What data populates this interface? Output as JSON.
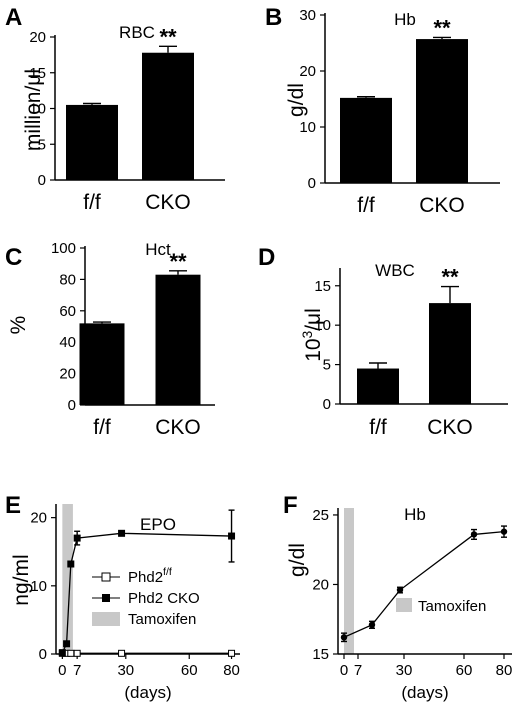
{
  "chart_data": [
    {
      "panel": "A",
      "type": "bar",
      "title": "RBC",
      "ylabel": "million/μl",
      "categories": [
        "f/f",
        "CKO"
      ],
      "values": [
        10.5,
        17.8
      ],
      "errors": [
        0.2,
        0.9
      ],
      "ylim": [
        0,
        20
      ],
      "yticks": [
        0,
        5,
        10,
        15,
        20
      ],
      "significance": "**"
    },
    {
      "panel": "B",
      "type": "bar",
      "title": "Hb",
      "ylabel": "g/dl",
      "categories": [
        "f/f",
        "CKO"
      ],
      "values": [
        15.2,
        25.7
      ],
      "errors": [
        0.2,
        0.3
      ],
      "ylim": [
        0,
        30
      ],
      "yticks": [
        0,
        10,
        20,
        30
      ],
      "significance": "**"
    },
    {
      "panel": "C",
      "type": "bar",
      "title": "Hct",
      "ylabel": "%",
      "categories": [
        "f/f",
        "CKO"
      ],
      "values": [
        52,
        83
      ],
      "errors": [
        0.8,
        2.5
      ],
      "ylim": [
        0,
        100
      ],
      "yticks": [
        0,
        20,
        40,
        60,
        80,
        100
      ],
      "significance": "**"
    },
    {
      "panel": "D",
      "type": "bar",
      "title": "WBC",
      "ylabel_base": "10",
      "ylabel_sup": "3",
      "ylabel_rest": "/μl",
      "categories": [
        "f/f",
        "CKO"
      ],
      "values": [
        4.5,
        12.8
      ],
      "errors": [
        0.7,
        2.1
      ],
      "ylim": [
        0,
        17
      ],
      "yticks": [
        0,
        5,
        10,
        15
      ],
      "significance": "**"
    },
    {
      "panel": "E",
      "type": "line",
      "title": "EPO",
      "ylabel": "ng/ml",
      "xlabel": "(days)",
      "xlim": [
        -3,
        84
      ],
      "xticks": [
        0,
        7,
        30,
        60,
        80
      ],
      "xtick_labels": [
        "0",
        "7",
        "30",
        "60",
        "80"
      ],
      "ylim": [
        0,
        22
      ],
      "yticks": [
        0,
        10,
        20
      ],
      "series": [
        {
          "name_base": "Phd2",
          "name_sup": "f/f",
          "marker": "open-square",
          "x": [
            0,
            2,
            4,
            7,
            28,
            80
          ],
          "y": [
            0.1,
            0.1,
            0.1,
            0.1,
            0.1,
            0.1
          ],
          "err": [
            0,
            0,
            0,
            0,
            0,
            0
          ]
        },
        {
          "name": "Phd2 CKO",
          "marker": "filled-square",
          "x": [
            0,
            2,
            4,
            7,
            28,
            80
          ],
          "y": [
            0.2,
            1.5,
            13.2,
            17.0,
            17.7,
            17.3
          ],
          "err": [
            0,
            0,
            0.3,
            1.0,
            0.3,
            3.8
          ]
        }
      ],
      "shade": {
        "label": "Tamoxifen",
        "x": [
          0,
          5
        ]
      }
    },
    {
      "panel": "F",
      "type": "line",
      "title": "Hb",
      "ylabel": "g/dl",
      "xlabel": "(days)",
      "xlim": [
        -3,
        84
      ],
      "xticks": [
        0,
        7,
        30,
        60,
        80
      ],
      "xtick_labels": [
        "0",
        "7",
        "30",
        "60",
        "80"
      ],
      "ylim": [
        15,
        25.5
      ],
      "yticks": [
        15,
        20,
        25
      ],
      "series": [
        {
          "marker": "filled-circle",
          "x": [
            0,
            14,
            28,
            65,
            80
          ],
          "y": [
            16.2,
            17.1,
            19.6,
            23.6,
            23.8
          ],
          "err": [
            0.3,
            0.25,
            0.2,
            0.35,
            0.4
          ]
        }
      ],
      "shade": {
        "label": "Tamoxifen",
        "x": [
          0,
          5
        ]
      }
    }
  ]
}
